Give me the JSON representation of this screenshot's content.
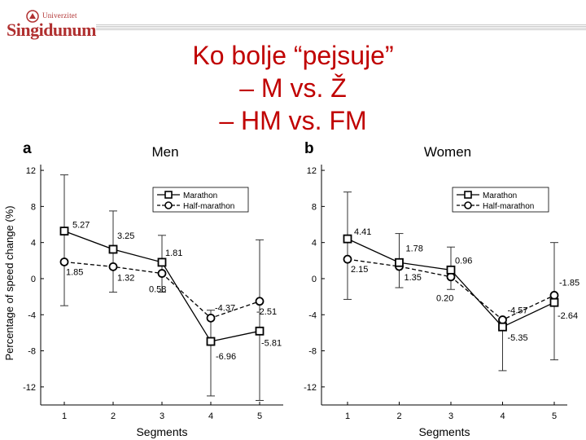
{
  "logo": {
    "top": "Univerzitet",
    "main": "Singidunum",
    "accent": "#b03030"
  },
  "slide": {
    "title": [
      "Ko bolje “pejsuje”",
      "– M vs. Ž",
      "– HM vs. FM"
    ],
    "title_color": "#c00000"
  },
  "chart_data": [
    {
      "type": "line",
      "panel": "a",
      "title": "Men",
      "xlabel": "Segments",
      "ylabel": "Percentage of speed change (%)",
      "x": [
        1,
        2,
        3,
        4,
        5
      ],
      "ylim": [
        -14,
        13
      ],
      "yticks": [
        12,
        8,
        4,
        0,
        -4,
        -8,
        -12
      ],
      "legend": "top-right",
      "series": [
        {
          "name": "Marathon",
          "marker": "square",
          "dash": false,
          "values": [
            5.27,
            3.25,
            1.81,
            -6.96,
            -5.81
          ],
          "labels": [
            "5.27",
            "3.25",
            "1.81",
            "-6.96",
            "-5.81"
          ],
          "err_low": [
            -3.0,
            -1.5,
            -1.5,
            -13.0,
            -13.5
          ],
          "err_high": [
            11.5,
            7.5,
            4.8,
            -3.5,
            4.3
          ]
        },
        {
          "name": "Half-marathon",
          "marker": "circle",
          "dash": true,
          "values": [
            1.85,
            1.32,
            0.58,
            -4.37,
            -2.51
          ],
          "labels": [
            "1.85",
            "1.32",
            "0.58",
            "-4.37",
            "-2.51"
          ]
        }
      ]
    },
    {
      "type": "line",
      "panel": "b",
      "title": "Women",
      "xlabel": "Segments",
      "ylabel": "",
      "x": [
        1,
        2,
        3,
        4,
        5
      ],
      "ylim": [
        -14,
        13
      ],
      "yticks": [
        12,
        8,
        4,
        0,
        -4,
        -8,
        -12
      ],
      "legend": "top-right",
      "series": [
        {
          "name": "Marathon",
          "marker": "square",
          "dash": false,
          "values": [
            4.41,
            1.78,
            0.96,
            -5.35,
            -2.64
          ],
          "labels": [
            "4.41",
            "1.78",
            "0.96",
            "-5.35",
            "-2.64"
          ],
          "err_low": [
            -2.3,
            -1.0,
            -1.2,
            -10.2,
            -9.0
          ],
          "err_high": [
            9.6,
            5.0,
            3.5,
            -4.8,
            4.0
          ]
        },
        {
          "name": "Half-marathon",
          "marker": "circle",
          "dash": true,
          "values": [
            2.15,
            1.35,
            0.2,
            -4.57,
            -1.85
          ],
          "labels": [
            "2.15",
            "1.35",
            "0.20",
            "-4.57",
            "-1.85"
          ]
        }
      ]
    }
  ]
}
